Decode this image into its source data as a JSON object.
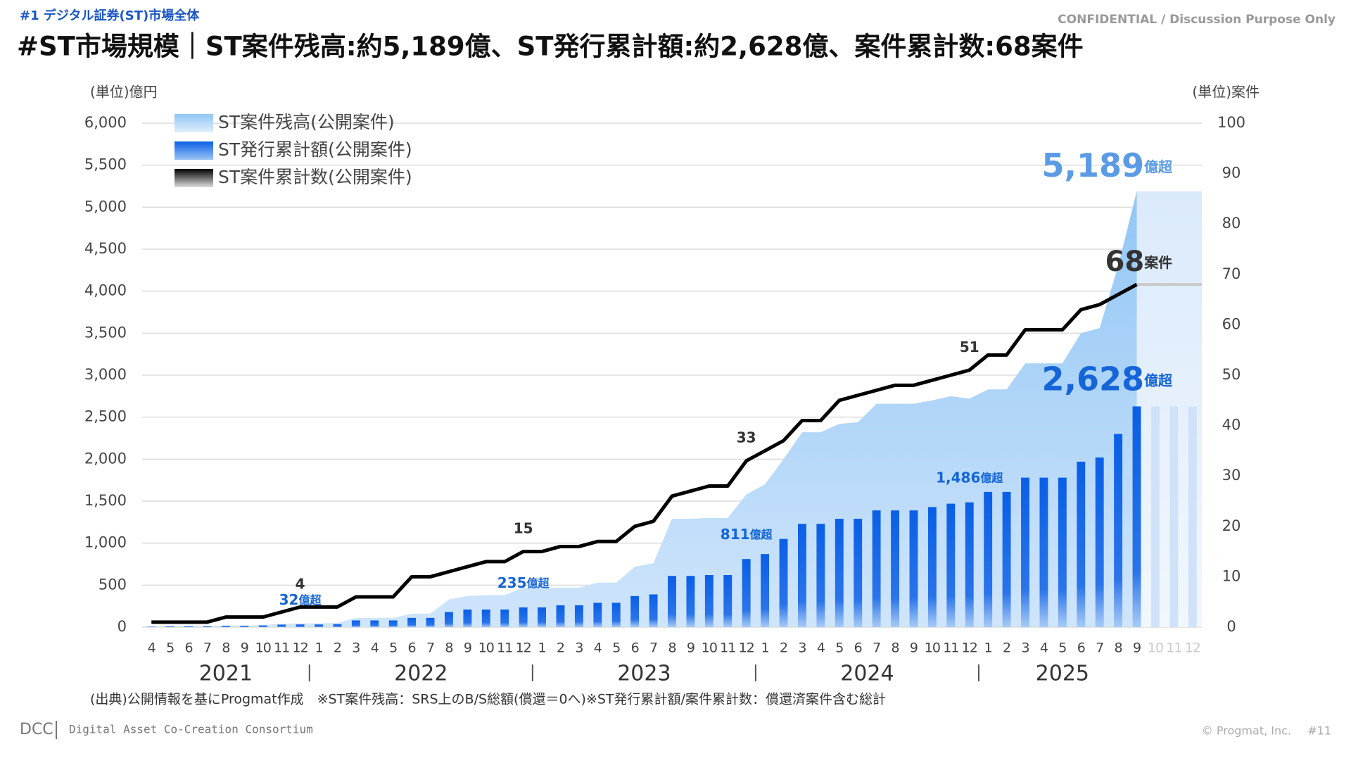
{
  "header": {
    "section": "#1 デジタル証券(ST)市場全体",
    "title": "#ST市場規模｜ST案件残高:約5,189億、ST発行累計額:約2,628億、案件累計数:68案件",
    "confidential": "CONFIDENTIAL / Discussion Purpose Only"
  },
  "chart_data": {
    "type": "combo",
    "y_unit": "(単位)億円",
    "y2_unit": "(単位)案件",
    "categories": [
      "4",
      "5",
      "6",
      "7",
      "8",
      "9",
      "10",
      "11",
      "12",
      "1",
      "2",
      "3",
      "4",
      "5",
      "6",
      "7",
      "8",
      "9",
      "10",
      "11",
      "12",
      "1",
      "2",
      "3",
      "4",
      "5",
      "6",
      "7",
      "8",
      "9",
      "10",
      "11",
      "12",
      "1",
      "2",
      "3",
      "4",
      "5",
      "6",
      "7",
      "8",
      "9",
      "10",
      "11",
      "12",
      "1",
      "2",
      "3",
      "4",
      "5",
      "6",
      "7",
      "8",
      "9",
      "10",
      "11",
      "12"
    ],
    "years": [
      "2021",
      "2022",
      "2023",
      "2024",
      "2025"
    ],
    "ylim": [
      0,
      6000
    ],
    "yticks": [
      0,
      500,
      {
        "value": 1000,
        "label": "1,000"
      },
      {
        "value": 1500,
        "label": "1,500"
      },
      {
        "value": 2000,
        "label": "2,000"
      },
      {
        "value": 2500,
        "label": "2,500"
      },
      {
        "value": 3000,
        "label": "3,000"
      },
      {
        "value": 3500,
        "label": "3,500"
      },
      {
        "value": 4000,
        "label": "4,000"
      },
      {
        "value": 4500,
        "label": "4,500"
      },
      {
        "value": 5000,
        "label": "5,000"
      },
      {
        "value": 5500,
        "label": "5,500"
      },
      {
        "value": 6000,
        "label": "6,000"
      }
    ],
    "y2lim": [
      0,
      100
    ],
    "y2ticks": [
      0,
      10,
      20,
      30,
      40,
      50,
      60,
      70,
      80,
      90,
      100
    ],
    "grid": true,
    "series": [
      {
        "name": "ST案件残高(公開案件)",
        "kind": "area",
        "color": "#a7d0f7",
        "label_color": "#5b9be6",
        "label_suffix": "億超",
        "values": [
          10,
          15,
          15,
          15,
          20,
          20,
          25,
          40,
          45,
          45,
          50,
          110,
          110,
          110,
          160,
          160,
          330,
          370,
          380,
          380,
          470,
          470,
          470,
          470,
          530,
          530,
          720,
          760,
          1290,
          1290,
          1300,
          1300,
          1580,
          1700,
          2000,
          2320,
          2320,
          2420,
          2440,
          2660,
          2660,
          2660,
          2700,
          2750,
          2720,
          2830,
          2830,
          3140,
          3140,
          3140,
          3500,
          3560,
          4300,
          5189,
          null,
          null,
          null
        ],
        "value_labels": [
          null,
          null,
          null,
          null,
          null,
          null,
          null,
          null,
          null,
          null,
          null,
          null,
          null,
          null,
          null,
          null,
          null,
          null,
          null,
          null,
          null,
          null,
          null,
          null,
          null,
          null,
          null,
          null,
          null,
          null,
          null,
          null,
          null,
          null,
          null,
          null,
          null,
          null,
          null,
          null,
          null,
          null,
          null,
          null,
          null,
          null,
          null,
          null,
          null,
          null,
          null,
          null,
          null,
          "5,189",
          null,
          null,
          null
        ]
      },
      {
        "name": "ST発行累計額(公開案件)",
        "kind": "bar",
        "color": "#0a5fe6",
        "label_color": "#1565d8",
        "label_suffix": "億超",
        "values": [
          5,
          8,
          10,
          10,
          15,
          15,
          20,
          30,
          32,
          32,
          35,
          80,
          80,
          80,
          110,
          110,
          180,
          210,
          210,
          210,
          235,
          235,
          260,
          260,
          290,
          290,
          370,
          390,
          610,
          610,
          620,
          620,
          811,
          870,
          1050,
          1230,
          1230,
          1290,
          1290,
          1390,
          1390,
          1390,
          1430,
          1470,
          1486,
          1610,
          1610,
          1780,
          1780,
          1780,
          1970,
          2020,
          2300,
          2628,
          null,
          null,
          null
        ],
        "value_labels": [
          null,
          null,
          null,
          null,
          null,
          null,
          null,
          null,
          "32",
          null,
          null,
          null,
          null,
          null,
          null,
          null,
          null,
          null,
          null,
          null,
          "235",
          null,
          null,
          null,
          null,
          null,
          null,
          null,
          null,
          null,
          null,
          null,
          "811",
          null,
          null,
          null,
          null,
          null,
          null,
          null,
          null,
          null,
          null,
          null,
          "1,486",
          null,
          null,
          null,
          null,
          null,
          null,
          null,
          null,
          "2,628",
          null,
          null,
          null
        ]
      },
      {
        "name": "ST案件累計数(公開案件)",
        "kind": "line",
        "axis": "y2",
        "color": "#000000",
        "label_color": "#333333",
        "label_suffix": "案件",
        "values": [
          1,
          1,
          1,
          1,
          2,
          2,
          2,
          3,
          4,
          4,
          4,
          6,
          6,
          6,
          10,
          10,
          11,
          12,
          13,
          13,
          15,
          15,
          16,
          16,
          17,
          17,
          20,
          21,
          26,
          27,
          28,
          28,
          33,
          35,
          37,
          41,
          41,
          45,
          46,
          47,
          48,
          48,
          49,
          50,
          51,
          54,
          54,
          59,
          59,
          59,
          63,
          64,
          66,
          68,
          null,
          null,
          null
        ],
        "value_labels": [
          null,
          null,
          null,
          null,
          null,
          null,
          null,
          null,
          "4",
          null,
          null,
          null,
          null,
          null,
          null,
          null,
          null,
          null,
          null,
          null,
          "15",
          null,
          null,
          null,
          null,
          null,
          null,
          null,
          null,
          null,
          null,
          null,
          "33",
          null,
          null,
          null,
          null,
          null,
          null,
          null,
          null,
          null,
          null,
          null,
          "51",
          null,
          null,
          null,
          null,
          null,
          null,
          null,
          null,
          "68",
          null,
          null,
          null
        ]
      }
    ]
  },
  "footnote": "(出典)公開情報を基にProgmat作成　※ST案件残高：SRS上のB/S総額(償還＝0へ)※ST発行累計額/案件累計数：償還済案件含む総計",
  "footer": {
    "logo": "DCC",
    "org": "Digital Asset Co-Creation Consortium",
    "copyright": "© Progmat, Inc.",
    "page": "#11"
  }
}
